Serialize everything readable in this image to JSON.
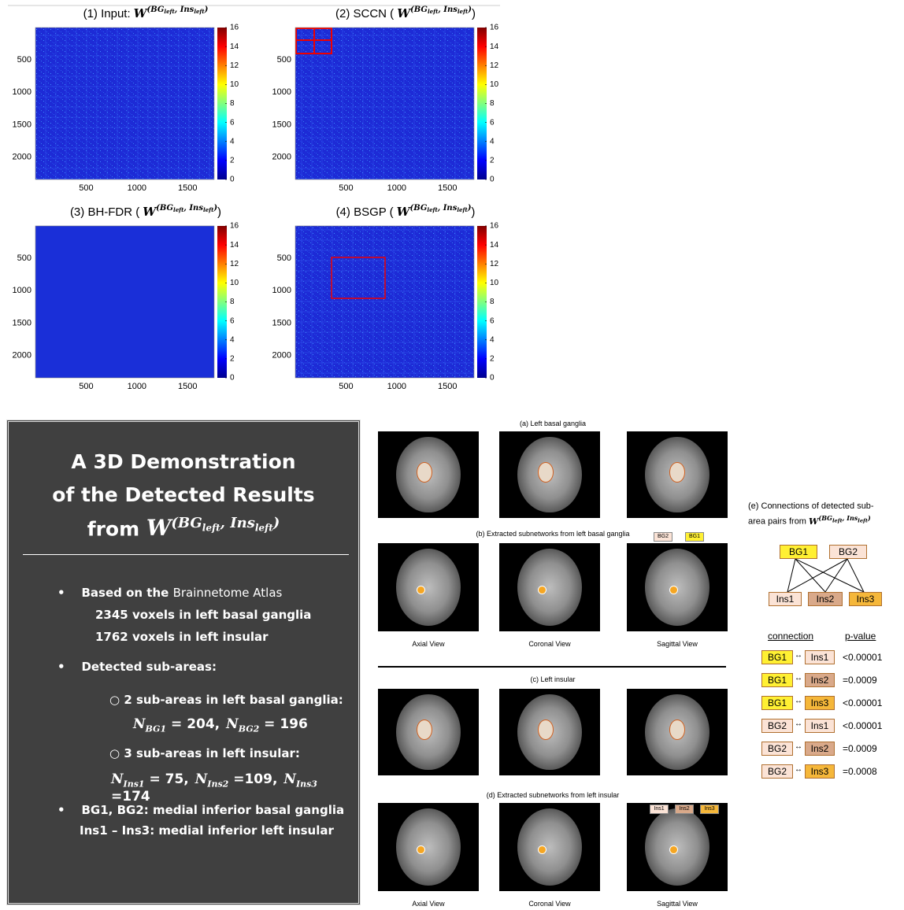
{
  "matrix": {
    "base": "W",
    "sup1": "BG",
    "sub1": "left",
    "sup2": "Ins",
    "sub2": "left"
  },
  "heatmaps": [
    {
      "prefix": "(1) Input:",
      "suffix": ""
    },
    {
      "prefix": "(2) SCCN (",
      "suffix": ")"
    },
    {
      "prefix": "(3) BH-FDR (",
      "suffix": ")"
    },
    {
      "prefix": "(4) BSGP (",
      "suffix": ")"
    }
  ],
  "axes": {
    "xticks": [
      500,
      1000,
      1500
    ],
    "yticks": [
      500,
      1000,
      1500,
      2000
    ],
    "colorbar_ticks": [
      0,
      2,
      4,
      6,
      8,
      10,
      12,
      14,
      16
    ]
  },
  "demo": {
    "title_lines": [
      "A 3D Demonstration",
      "of the Detected Results",
      "from"
    ],
    "bullet1": {
      "bold": "Based on the",
      "rest": "Brainnetome Atlas",
      "lines": [
        "2345 voxels in left basal ganglia",
        "1762 voxels in left insular"
      ]
    },
    "bullet2": "Detected sub-areas:",
    "sub1": "2 sub-areas in left basal ganglia:",
    "eq1": [
      {
        "sym": "N",
        "sub": "BG1",
        "text": " = 204,"
      },
      {
        "sym": "N",
        "sub": "BG2",
        "text": " = 196"
      }
    ],
    "sub2": "3 sub-areas in left insular:",
    "eq2": [
      {
        "sym": "N",
        "sub": "Ins1",
        "text": " = 75,"
      },
      {
        "sym": "N",
        "sub": "Ins2",
        "text": " =109,"
      },
      {
        "sym": "N",
        "sub": "Ins3",
        "text": " =174"
      }
    ],
    "bullet3": [
      "BG1, BG2: medial inferior basal ganglia",
      "Ins1 – Ins3: medial inferior left insular"
    ]
  },
  "brains": {
    "captions": [
      "(a) Left basal ganglia",
      "(b) Extracted subnetworks from left basal ganglia",
      "(c) Left insular",
      "(d) Extracted subnetworks from left insular"
    ],
    "views": [
      "Axial View",
      "Coronal View",
      "Sagittal View"
    ],
    "tags_b": [
      "BG2",
      "BG1"
    ],
    "tags_d": [
      "Ins1",
      "Ins2",
      "Ins3"
    ]
  },
  "connections": {
    "title": "(e) Connections of detected sub-area pairs from",
    "title_line1": "(e) Connections of detected sub-",
    "title_line2": "area pairs from",
    "nodes": [
      "BG1",
      "BG2",
      "Ins1",
      "Ins2",
      "Ins3"
    ],
    "header": [
      "connection",
      "p-value"
    ],
    "rows": [
      [
        "BG1",
        "Ins1",
        "<0.00001"
      ],
      [
        "BG1",
        "Ins2",
        "=0.0009"
      ],
      [
        "BG1",
        "Ins3",
        "<0.00001"
      ],
      [
        "BG2",
        "Ins1",
        "<0.00001"
      ],
      [
        "BG2",
        "Ins2",
        "=0.0009"
      ],
      [
        "BG2",
        "Ins3",
        "=0.0008"
      ]
    ]
  }
}
